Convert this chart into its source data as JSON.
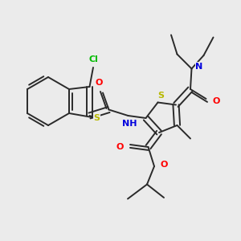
{
  "background_color": "#ebebeb",
  "figsize": [
    3.0,
    3.0
  ],
  "dpi": 100,
  "bond_color": "#2a2a2a",
  "line_width": 1.4,
  "font_size": 8.5,
  "xlim": [
    0.0,
    10.0
  ],
  "ylim": [
    0.0,
    10.0
  ],
  "colors": {
    "S": "#b8b800",
    "O": "#ff0000",
    "N": "#0000dd",
    "Cl": "#00bb00",
    "C": "#2a2a2a",
    "bg": "#ebebeb"
  }
}
